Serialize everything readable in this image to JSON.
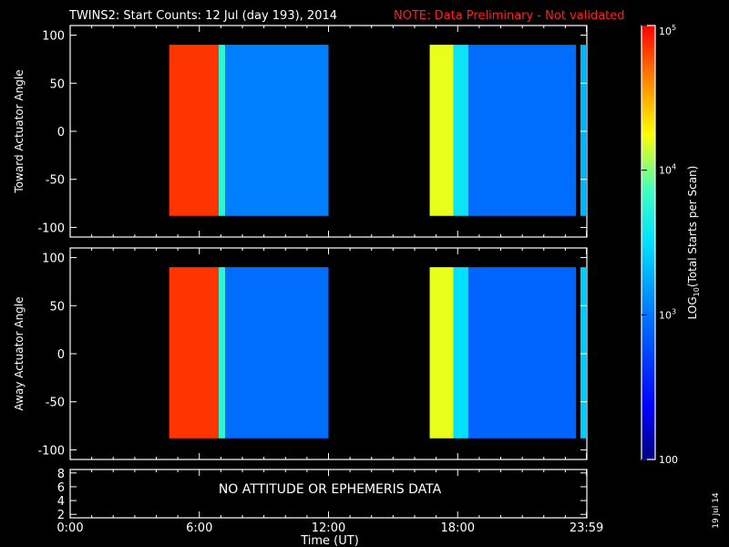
{
  "header": {
    "title": "TWINS2: Start Counts: 12 Jul (day 193), 2014",
    "note": "NOTE: Data Preliminary - Not validated",
    "note_color": "#ff2020"
  },
  "side_date": "19 Jul 14",
  "attitude_message": "NO ATTITUDE OR EPHEMERIS DATA",
  "chart_data": [
    {
      "type": "heatmap",
      "panel": "toward",
      "title": "TWINS2: Start Counts: 12 Jul (day 193), 2014",
      "xlabel": "",
      "ylabel": "Toward Actuator Angle",
      "x_unit": "hours UT",
      "xlim": [
        0,
        24
      ],
      "ylim": [
        -110,
        110
      ],
      "ytick_values": [
        100,
        50,
        0,
        -50,
        -100
      ],
      "ytick_labels": [
        "100",
        "50",
        "0",
        "-50",
        "-100"
      ],
      "data_extent_angle": [
        -88,
        90
      ],
      "data_segments": [
        {
          "start": 4.6,
          "end": 12.0,
          "columns": [
            {
              "x0": 4.6,
              "x1": 6.9,
              "log_level": 4.85
            },
            {
              "x0": 6.9,
              "x1": 7.2,
              "log_level": 3.75
            },
            {
              "x0": 7.2,
              "x1": 12.0,
              "log_level": 3.05
            }
          ]
        },
        {
          "start": 16.7,
          "end": 23.5,
          "columns": [
            {
              "x0": 16.7,
              "x1": 17.8,
              "log_level": 4.2
            },
            {
              "x0": 17.8,
              "x1": 18.5,
              "log_level": 3.55
            },
            {
              "x0": 18.5,
              "x1": 23.5,
              "log_level": 2.95
            }
          ]
        },
        {
          "start": 23.7,
          "end": 24.0,
          "columns": [
            {
              "x0": 23.7,
              "x1": 24.0,
              "log_level": 3.3
            }
          ]
        }
      ]
    },
    {
      "type": "heatmap",
      "panel": "away",
      "xlabel": "",
      "ylabel": "Away Actuator Angle",
      "x_unit": "hours UT",
      "xlim": [
        0,
        24
      ],
      "ylim": [
        -110,
        110
      ],
      "ytick_values": [
        100,
        50,
        0,
        -50,
        -100
      ],
      "ytick_labels": [
        "100",
        "50",
        "0",
        "-50",
        "-100"
      ],
      "data_extent_angle": [
        -88,
        90
      ],
      "data_segments": [
        {
          "start": 4.6,
          "end": 12.0,
          "columns": [
            {
              "x0": 4.6,
              "x1": 6.9,
              "log_level": 4.85
            },
            {
              "x0": 6.9,
              "x1": 7.2,
              "log_level": 3.75
            },
            {
              "x0": 7.2,
              "x1": 12.0,
              "log_level": 2.95
            }
          ]
        },
        {
          "start": 16.7,
          "end": 23.5,
          "columns": [
            {
              "x0": 16.7,
              "x1": 17.8,
              "log_level": 4.2
            },
            {
              "x0": 17.8,
              "x1": 18.5,
              "log_level": 3.5
            },
            {
              "x0": 18.5,
              "x1": 23.5,
              "log_level": 2.9
            }
          ]
        },
        {
          "start": 23.7,
          "end": 24.0,
          "columns": [
            {
              "x0": 23.7,
              "x1": 24.0,
              "log_level": 3.4
            }
          ]
        }
      ]
    },
    {
      "type": "line",
      "panel": "ephemeris",
      "ylabel": "",
      "xlim": [
        0,
        24
      ],
      "ylim": [
        1.5,
        8.5
      ],
      "ytick_values": [
        8,
        6,
        4,
        2
      ],
      "ytick_labels": [
        "8",
        "6",
        "4",
        "2"
      ],
      "xlabel": "Time (UT)",
      "xtick_values": [
        0,
        6,
        12,
        18,
        23.983
      ],
      "xtick_labels": [
        "0:00",
        "6:00",
        "12:00",
        "18:00",
        "23:59"
      ]
    },
    {
      "type": "colorbar",
      "label": "LOG10(Total Starts per Scan)",
      "label_main": "LOG",
      "label_sub": "10",
      "label_rest": "(Total Starts per Scan)",
      "scale": "log",
      "range": [
        100,
        100000
      ],
      "ticks": [
        {
          "value": 100000,
          "base": "10",
          "exp": "5"
        },
        {
          "value": 10000,
          "base": "10",
          "exp": "4"
        },
        {
          "value": 1000,
          "base": "10",
          "exp": "3"
        },
        {
          "value": 100,
          "base": "100",
          "exp": ""
        }
      ]
    }
  ]
}
